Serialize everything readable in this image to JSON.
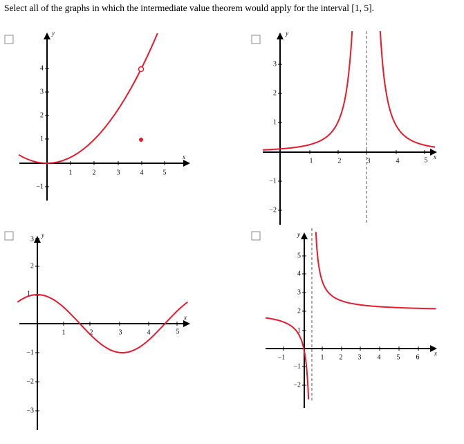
{
  "question": "Select all of the graphs in which the intermediate value theorem would apply for the interval [1, 5].",
  "options": [
    {
      "y_axis_label": "y",
      "x_axis_label": "x",
      "x_tick_labels": [
        "1",
        "2",
        "3",
        "4",
        "5"
      ],
      "y_tick_labels": [
        "4",
        "3",
        "2",
        "1",
        "−1"
      ]
    },
    {
      "y_axis_label": "y",
      "x_axis_label": "x",
      "x_tick_labels": [
        "1",
        "2",
        "3",
        "4",
        "5"
      ],
      "y_tick_labels": [
        "3",
        "2",
        "1",
        "−1",
        "−2"
      ]
    },
    {
      "y_axis_label": "y",
      "x_axis_label": "x",
      "x_tick_labels": [
        "1",
        "2",
        "3",
        "4",
        "5"
      ],
      "y_tick_labels": [
        "3",
        "2",
        "1",
        "−1",
        "−2",
        "−3"
      ]
    },
    {
      "y_axis_label": "y",
      "x_axis_label": "x",
      "x_tick_labels": [
        "−1",
        "1",
        "2",
        "3",
        "4",
        "5",
        "6"
      ],
      "y_tick_labels": [
        "5",
        "4",
        "3",
        "2",
        "1",
        "−1",
        "−2"
      ]
    }
  ]
}
